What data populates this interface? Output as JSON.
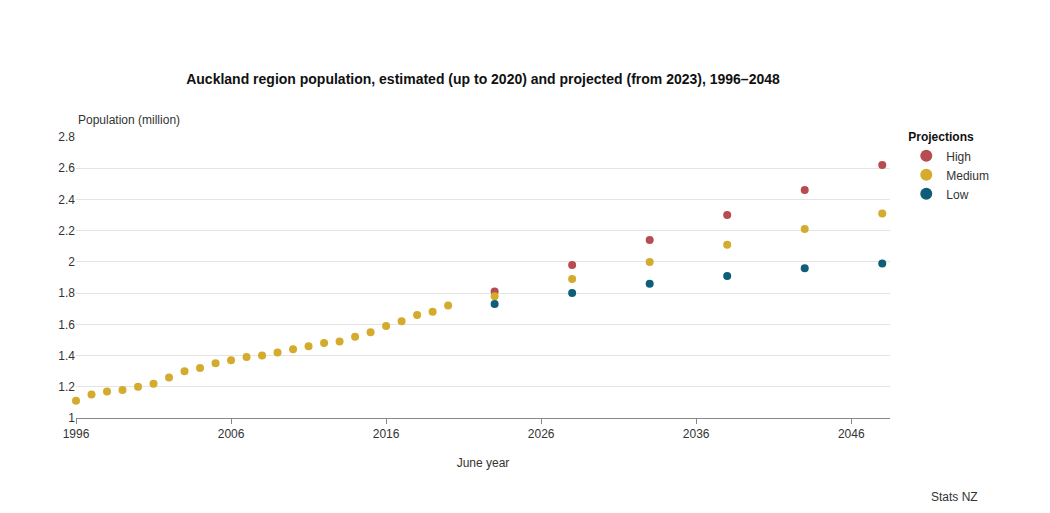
{
  "chart_data": {
    "type": "scatter",
    "title": "Auckland region population, estimated (up to 2020) and projected (from 2023), 1996–2048",
    "x_label": "June year",
    "y_label": "Population (million)",
    "source": "Stats NZ",
    "legend_title": "Projections",
    "legend": "right",
    "grid": true,
    "marker": "circle",
    "xlim": [
      1996,
      2048.5
    ],
    "xticks": [
      1996,
      2006,
      2016,
      2026,
      2036,
      2046
    ],
    "ylim": [
      1,
      2.8
    ],
    "yticks": [
      1,
      1.2,
      1.4,
      1.6,
      1.8,
      2,
      2.2,
      2.4,
      2.6,
      2.8
    ],
    "series": [
      {
        "color": "#d4ab2c",
        "x": [
          1996,
          1997,
          1998,
          1999,
          2000,
          2001,
          2002,
          2003,
          2004,
          2005,
          2006,
          2007,
          2008,
          2009,
          2010,
          2011,
          2012,
          2013,
          2014,
          2015,
          2016,
          2017,
          2018,
          2019,
          2020
        ],
        "values": [
          1.11,
          1.15,
          1.17,
          1.18,
          1.2,
          1.22,
          1.26,
          1.3,
          1.32,
          1.35,
          1.37,
          1.39,
          1.4,
          1.42,
          1.44,
          1.46,
          1.48,
          1.49,
          1.52,
          1.55,
          1.59,
          1.62,
          1.66,
          1.68,
          1.72
        ]
      },
      {
        "name": "High",
        "color": "#b84a51",
        "x": [
          2023,
          2028,
          2033,
          2038,
          2043,
          2048
        ],
        "values": [
          1.81,
          1.98,
          2.14,
          2.3,
          2.46,
          2.62
        ]
      },
      {
        "name": "Medium",
        "color": "#d4ab2c",
        "x": [
          2023,
          2028,
          2033,
          2038,
          2043,
          2048
        ],
        "values": [
          1.78,
          1.89,
          2.0,
          2.11,
          2.21,
          2.31
        ]
      },
      {
        "name": "Low",
        "color": "#0f5d78",
        "x": [
          2023,
          2028,
          2033,
          2038,
          2043,
          2048
        ],
        "values": [
          1.73,
          1.8,
          1.86,
          1.91,
          1.96,
          1.99
        ]
      }
    ]
  }
}
